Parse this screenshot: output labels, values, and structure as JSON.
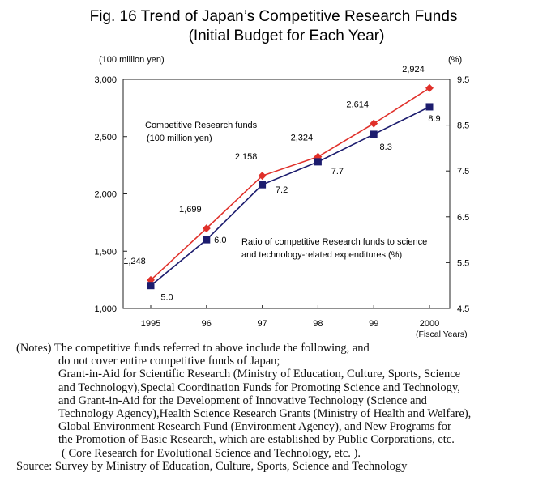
{
  "title": {
    "line1": "Fig. 16  Trend of Japan’s Competitive Research Funds",
    "line2": "(Initial Budget for Each Year)"
  },
  "chart_data": {
    "type": "line",
    "categories": [
      "1995",
      "96",
      "97",
      "98",
      "99",
      "2000"
    ],
    "series": [
      {
        "name": "Competitive Research funds (100 million yen)",
        "axis": "left",
        "color": "#e0302a",
        "marker": "diamond",
        "values": [
          1248,
          1699,
          2158,
          2324,
          2614,
          2924
        ],
        "labels": [
          "1,248",
          "1,699",
          "2,158",
          "2,324",
          "2,614",
          "2,924"
        ]
      },
      {
        "name": "Ratio of competitive Research funds to science and technology-related expenditures (%)",
        "axis": "right",
        "color": "#1c1c6e",
        "marker": "square",
        "values": [
          5.0,
          6.0,
          7.2,
          7.7,
          8.3,
          8.9
        ],
        "labels": [
          "5.0",
          "6.0",
          "7.2",
          "7.7",
          "8.3",
          "8.9"
        ]
      }
    ],
    "left_axis": {
      "unit": "(100 million yen)",
      "ylim": [
        1000,
        3000
      ],
      "ticks": [
        1000,
        1500,
        2000,
        2500,
        3000
      ],
      "tick_labels": [
        "1,000",
        "1,500",
        "2,000",
        "2,500",
        "3,000"
      ]
    },
    "right_axis": {
      "unit": "(%)",
      "ylim": [
        4.5,
        9.5
      ],
      "ticks": [
        4.5,
        5.5,
        6.5,
        7.5,
        8.5,
        9.5
      ],
      "tick_labels": [
        "4.5",
        "5.5",
        "6.5",
        "7.5",
        "8.5",
        "9.5"
      ]
    },
    "x_unit": "(Fiscal Years)",
    "annotations": {
      "funds_label_line1": "Competitive Research funds",
      "funds_label_line2": "(100 million yen)",
      "ratio_label_line1": "Ratio of competitive Research funds to science",
      "ratio_label_line2": "and technology-related expenditures (%)"
    },
    "grid": false
  },
  "notes": {
    "line1": "(Notes) The competitive funds referred to above include the following, and",
    "line2": "do not cover entire competitive funds of Japan;",
    "line3": "Grant-in-Aid for Scientific Research (Ministry of Education, Culture, Sports, Science",
    "line4": "and    Technology),Special Coordination Funds for Promoting Science and Technology,",
    "line5": "and Grant-in-Aid for the Development of Innovative Technology (Science and",
    "line6": "Technology Agency),Health Science Research Grants (Ministry of Health and Welfare),",
    "line7": "Global Environment Research Fund (Environment Agency), and    New Programs for",
    "line8": "the Promotion of Basic Research, which are established by Public Corporations, etc.",
    "line9": "( Core Research for Evolutional Science and Technology, etc. ).",
    "source": "Source: Survey by Ministry of Education, Culture, Sports, Science and Technology"
  }
}
